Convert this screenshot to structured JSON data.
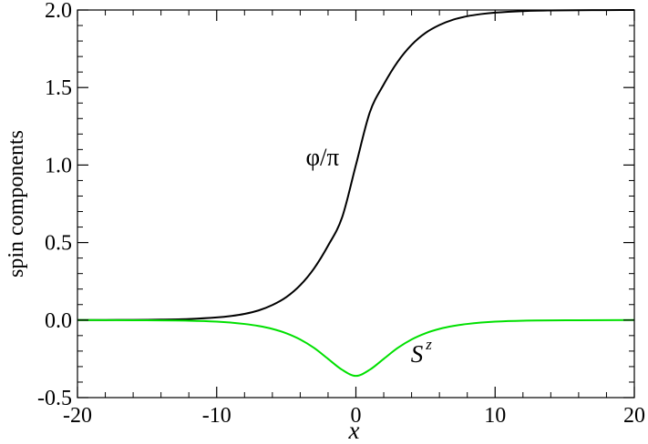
{
  "chart_data": {
    "type": "line",
    "title": "",
    "xlabel": "x",
    "ylabel": "spin components",
    "xlim": [
      -20,
      20
    ],
    "ylim": [
      -0.5,
      2.0
    ],
    "x_ticks": [
      -20,
      -10,
      0,
      10,
      20
    ],
    "x_tick_labels": [
      "-20",
      "-10",
      "0",
      "10",
      "20"
    ],
    "y_ticks": [
      -0.5,
      0.0,
      0.5,
      1.0,
      1.5,
      2.0
    ],
    "y_tick_labels": [
      "-0.5",
      "0.0",
      "0.5",
      "1.0",
      "1.5",
      "2.0"
    ],
    "grid": false,
    "series": [
      {
        "color": "#000000",
        "x": [
          -20,
          -18,
          -16,
          -14,
          -12,
          -10,
          -9,
          -8,
          -7,
          -6,
          -5,
          -4,
          -3,
          -2,
          -1,
          0,
          1,
          2,
          3,
          4,
          5,
          6,
          7,
          8,
          9,
          10,
          12,
          14,
          16,
          18,
          20
        ],
        "y": [
          0.0002,
          0.0005,
          0.0013,
          0.003,
          0.007,
          0.017,
          0.026,
          0.04,
          0.062,
          0.097,
          0.148,
          0.225,
          0.334,
          0.48,
          0.66,
          1.0,
          1.34,
          1.52,
          1.666,
          1.775,
          1.852,
          1.903,
          1.938,
          1.96,
          1.974,
          1.983,
          1.993,
          1.997,
          1.9987,
          1.9995,
          1.9998
        ]
      },
      {
        "color": "#00e000",
        "x": [
          -20,
          -16,
          -12,
          -10,
          -9,
          -8,
          -7,
          -6,
          -5,
          -4,
          -3,
          -2,
          -1,
          0,
          1,
          2,
          3,
          4,
          5,
          6,
          7,
          8,
          9,
          10,
          12,
          16,
          20
        ],
        "y": [
          0.0,
          -0.001,
          -0.004,
          -0.01,
          -0.016,
          -0.025,
          -0.038,
          -0.057,
          -0.085,
          -0.125,
          -0.18,
          -0.25,
          -0.32,
          -0.36,
          -0.32,
          -0.25,
          -0.18,
          -0.125,
          -0.085,
          -0.057,
          -0.038,
          -0.025,
          -0.016,
          -0.01,
          -0.004,
          -0.001,
          0.0
        ]
      }
    ],
    "annotations": [
      {
        "text_main": "φ/π",
        "x": -2.4,
        "y": 1.0
      },
      {
        "text_main": "S",
        "text_sup": "z",
        "x": 4.7,
        "y": -0.27
      }
    ]
  }
}
